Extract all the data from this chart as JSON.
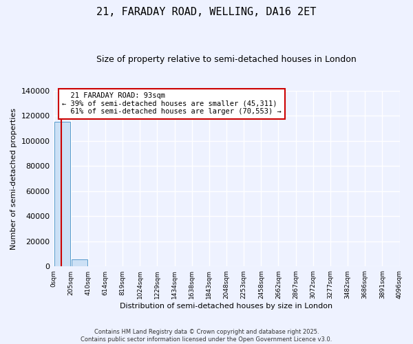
{
  "title": "21, FARADAY ROAD, WELLING, DA16 2ET",
  "subtitle": "Size of property relative to semi-detached houses in London",
  "xlabel": "Distribution of semi-detached houses by size in London",
  "ylabel": "Number of semi-detached properties",
  "property_size": 93,
  "property_label": "21 FARADAY ROAD: 93sqm",
  "pct_smaller": 39,
  "count_smaller": 45311,
  "pct_larger": 61,
  "count_larger": 70553,
  "bar_color": "#cce0f5",
  "bar_edge_color": "#5599cc",
  "red_line_color": "#cc0000",
  "annotation_box_color": "#ffffff",
  "annotation_box_edge": "#cc0000",
  "background_color": "#eef2ff",
  "grid_color": "#ffffff",
  "footer": "Contains HM Land Registry data © Crown copyright and database right 2025.\nContains public sector information licensed under the Open Government Licence v3.0.",
  "bin_edges": [
    0,
    205,
    410,
    614,
    819,
    1024,
    1229,
    1434,
    1638,
    1843,
    2048,
    2253,
    2458,
    2662,
    2867,
    3072,
    3277,
    3482,
    3686,
    3891,
    4096
  ],
  "bin_labels": [
    "0sqm",
    "205sqm",
    "410sqm",
    "614sqm",
    "819sqm",
    "1024sqm",
    "1229sqm",
    "1434sqm",
    "1638sqm",
    "1843sqm",
    "2048sqm",
    "2253sqm",
    "2458sqm",
    "2662sqm",
    "2867sqm",
    "3072sqm",
    "3277sqm",
    "3482sqm",
    "3686sqm",
    "3891sqm",
    "4096sqm"
  ],
  "counts": [
    115000,
    5500,
    300,
    80,
    30,
    15,
    8,
    5,
    3,
    2,
    1,
    1,
    1,
    0,
    0,
    0,
    0,
    0,
    0,
    0
  ],
  "ylim": [
    0,
    140000
  ],
  "yticks": [
    0,
    20000,
    40000,
    60000,
    80000,
    100000,
    120000,
    140000
  ]
}
